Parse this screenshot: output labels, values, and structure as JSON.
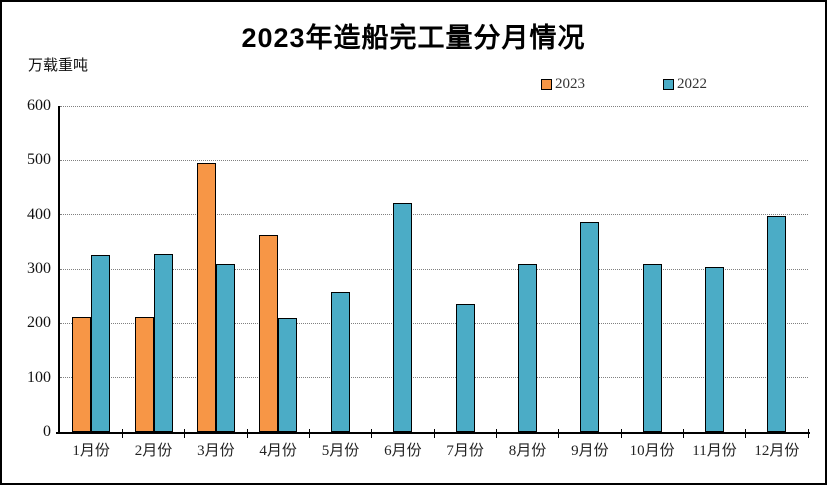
{
  "chart_data": {
    "type": "bar",
    "title": "2023年造船完工量分月情况",
    "unit_label": "万载重吨",
    "categories": [
      "1月份",
      "2月份",
      "3月份",
      "4月份",
      "5月份",
      "6月份",
      "7月份",
      "8月份",
      "9月份",
      "10月份",
      "11月份",
      "12月份"
    ],
    "series": [
      {
        "name": "2023",
        "color": "#F79646",
        "values": [
          211,
          211,
          495,
          363,
          null,
          null,
          null,
          null,
          null,
          null,
          null,
          null
        ]
      },
      {
        "name": "2022",
        "color": "#4BACC6",
        "values": [
          326,
          328,
          309,
          210,
          257,
          421,
          236,
          310,
          386,
          309,
          304,
          397
        ]
      }
    ],
    "ylim": [
      0,
      600
    ],
    "yticks": [
      0,
      100,
      200,
      300,
      400,
      500,
      600
    ],
    "grid": "horizontal-dotted",
    "legend_position": "top-right",
    "bar_border_color": "#000000",
    "background_color": "#ffffff",
    "frame_color": "#000000"
  }
}
